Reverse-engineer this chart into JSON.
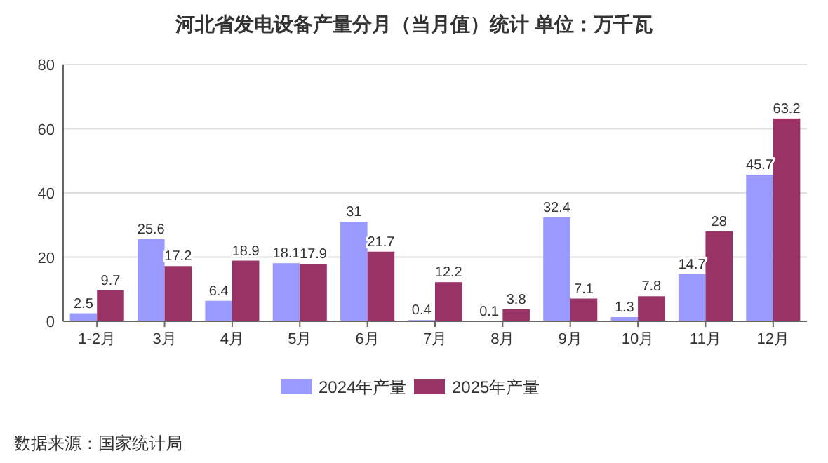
{
  "chart_data": {
    "type": "bar",
    "title": "河北省发电设备产量分月（当月值）统计 单位：万千瓦",
    "categories": [
      "1-2月",
      "3月",
      "4月",
      "5月",
      "6月",
      "7月",
      "8月",
      "9月",
      "10月",
      "11月",
      "12月"
    ],
    "series": [
      {
        "name": "2024年产量",
        "color": "#9999ff",
        "values": [
          2.5,
          25.6,
          6.4,
          18.1,
          31,
          0.4,
          0.1,
          32.4,
          1.3,
          14.7,
          45.7
        ]
      },
      {
        "name": "2025年产量",
        "color": "#993366",
        "values": [
          9.7,
          17.2,
          18.9,
          17.9,
          21.7,
          12.2,
          3.8,
          7.1,
          7.8,
          28,
          63.2
        ]
      }
    ],
    "ylim": [
      0,
      80
    ],
    "yticks": [
      0,
      20,
      40,
      60,
      80
    ],
    "grid": "y",
    "legend": "bottom",
    "data_labels": true,
    "annotations": [
      "数据来源：国家统计局"
    ]
  }
}
